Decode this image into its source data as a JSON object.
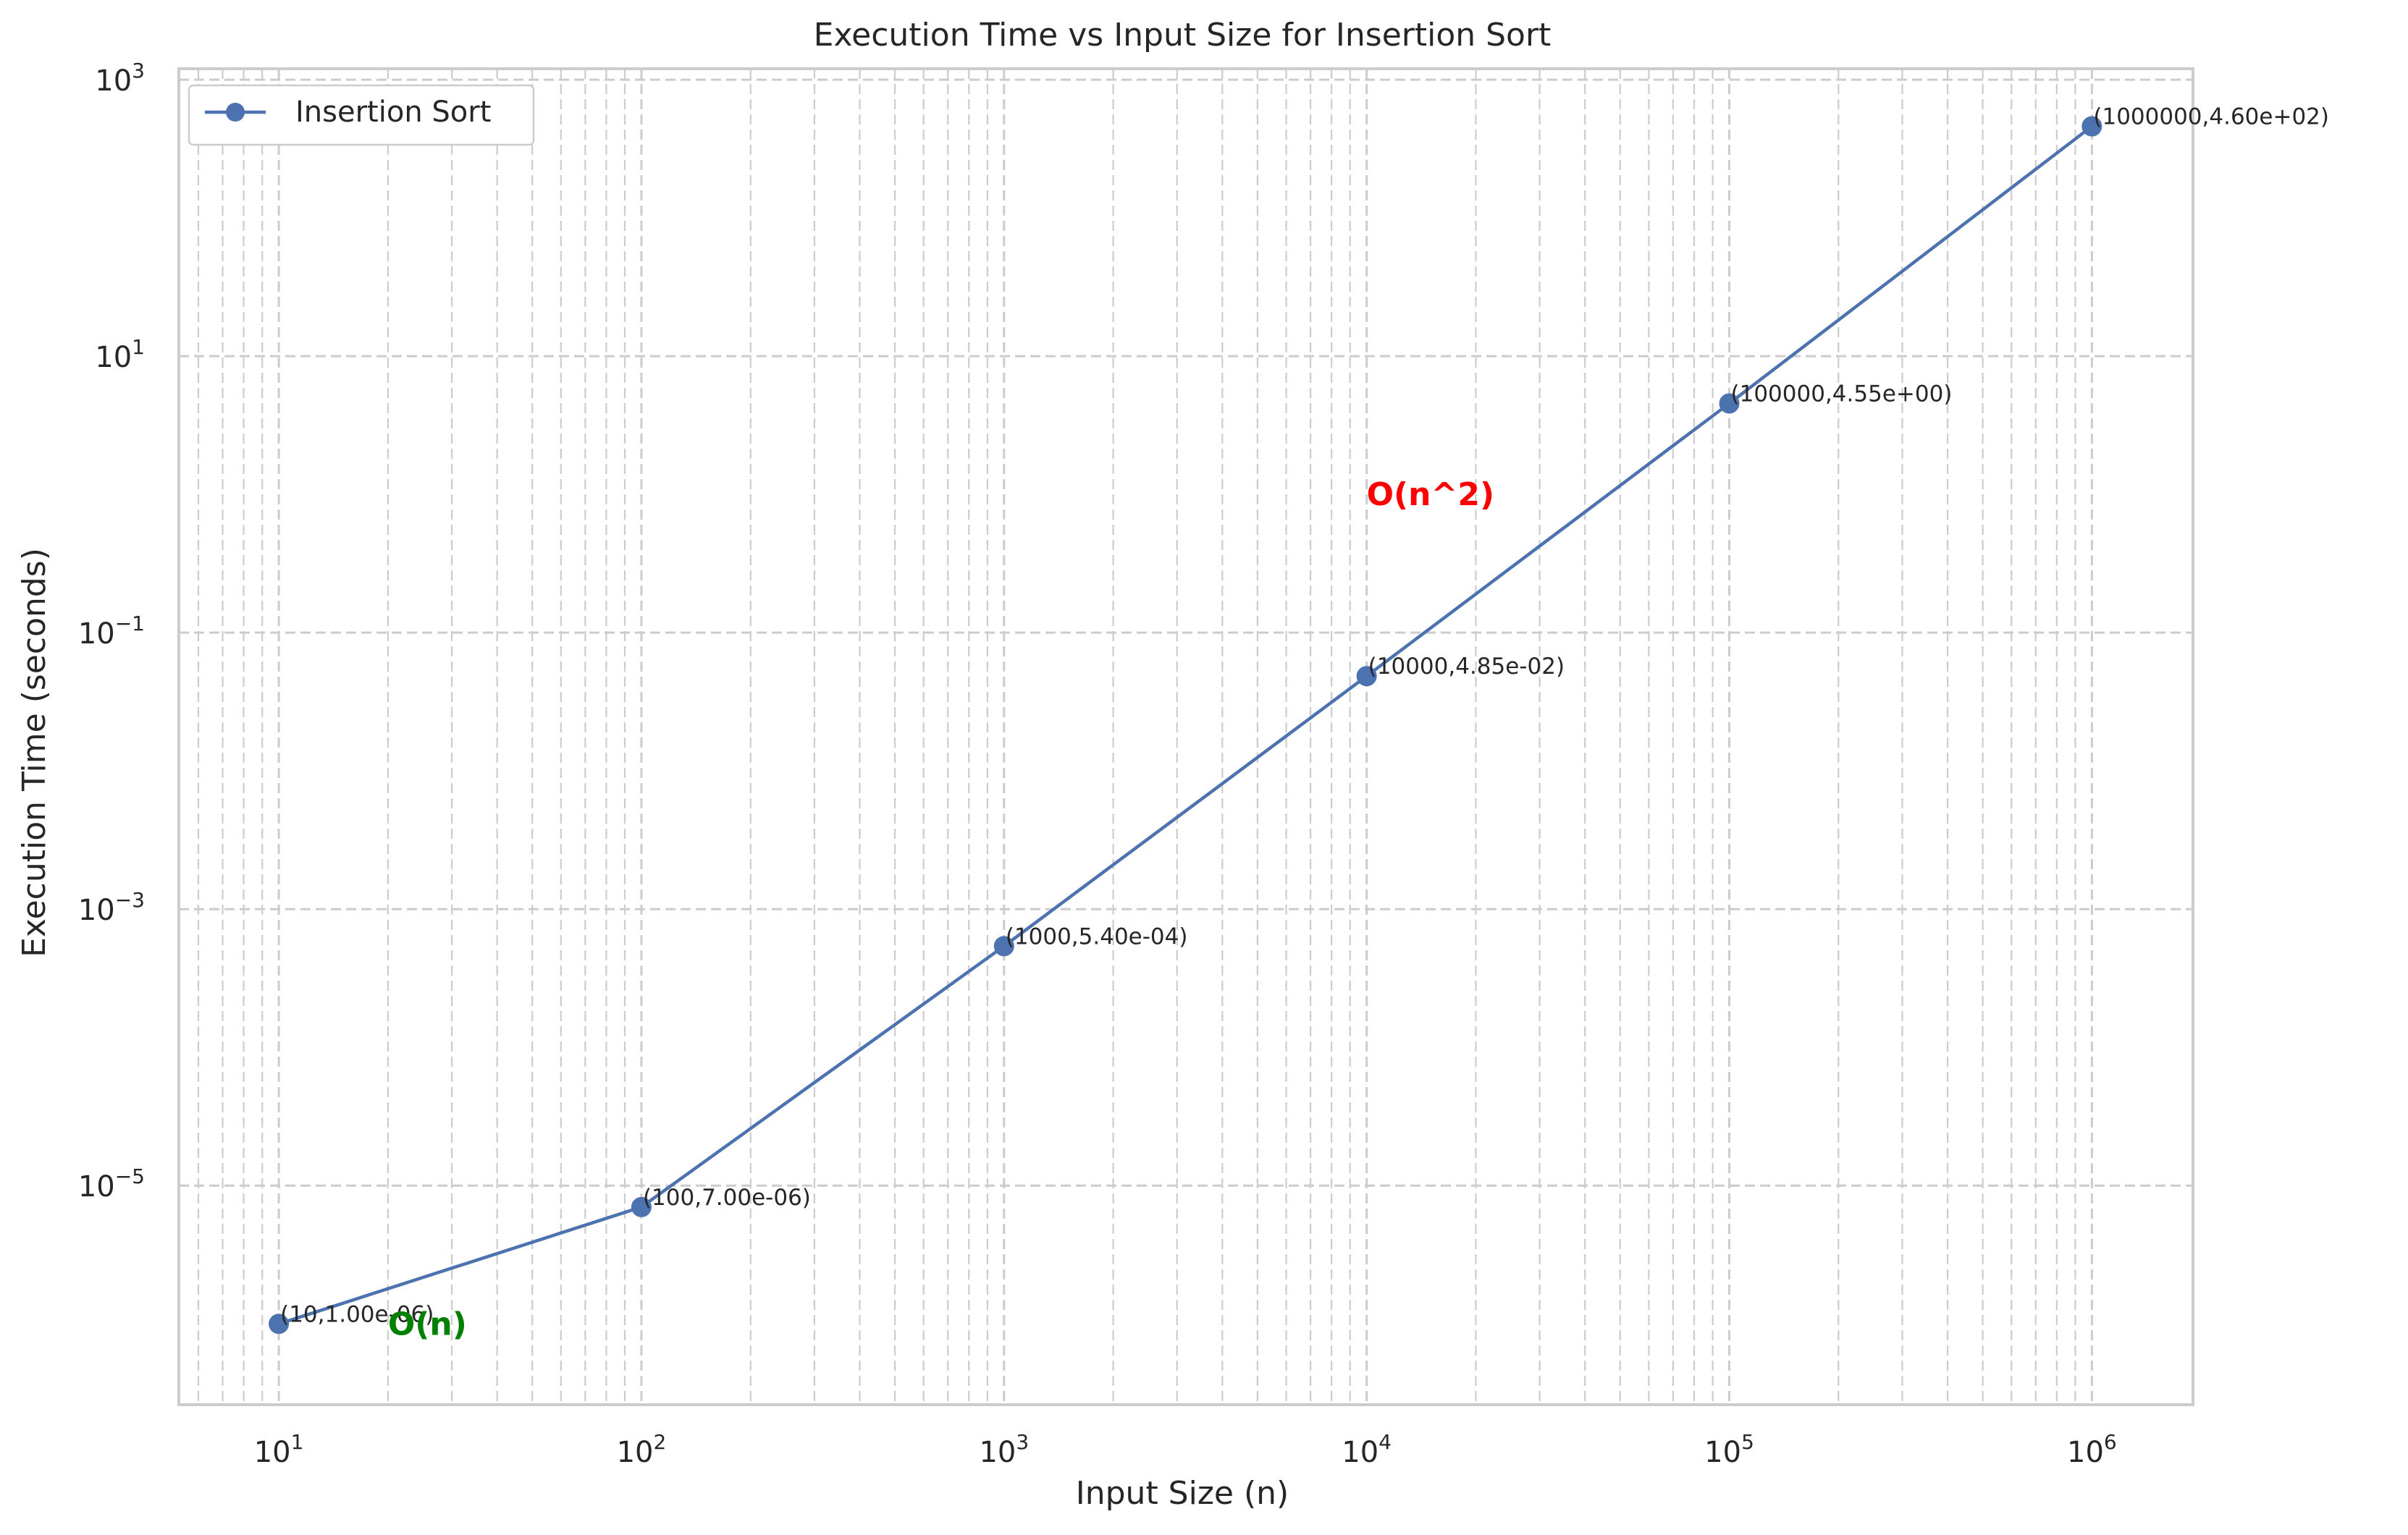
{
  "chart_data": {
    "type": "line",
    "title": "Execution Time vs Input Size for Insertion Sort",
    "xlabel": "Input Size (n)",
    "ylabel": "Execution Time (seconds)",
    "xscale": "log",
    "yscale": "log",
    "xlim": [
      5.3,
      1900000
    ],
    "ylim": [
      2.6e-07,
      1200
    ],
    "grid": "on (major and minor, dashed)",
    "legend_position": "top-left",
    "x_ticks": [
      {
        "value": 10,
        "base": "10",
        "exp": "1"
      },
      {
        "value": 100,
        "base": "10",
        "exp": "2"
      },
      {
        "value": 1000,
        "base": "10",
        "exp": "3"
      },
      {
        "value": 10000,
        "base": "10",
        "exp": "4"
      },
      {
        "value": 100000,
        "base": "10",
        "exp": "5"
      },
      {
        "value": 1000000,
        "base": "10",
        "exp": "6"
      }
    ],
    "y_ticks": [
      {
        "value": 1e-05,
        "base": "10",
        "exp": "−5"
      },
      {
        "value": 0.001,
        "base": "10",
        "exp": "−3"
      },
      {
        "value": 0.1,
        "base": "10",
        "exp": "−1"
      },
      {
        "value": 10,
        "base": "10",
        "exp": "1"
      },
      {
        "value": 1000,
        "base": "10",
        "exp": "3"
      }
    ],
    "series": [
      {
        "name": "Insertion Sort",
        "color": "#4c72b0",
        "marker": "circle",
        "x": [
          10,
          100,
          1000,
          10000,
          100000,
          1000000
        ],
        "y": [
          1e-06,
          7e-06,
          0.00054,
          0.0485,
          4.55,
          460
        ],
        "point_labels": [
          "(10,1.00e-06)",
          "(100,7.00e-06)",
          "(1000,5.40e-04)",
          "(10000,4.85e-02)",
          "(100000,4.55e+00)",
          "(1000000,4.60e+02)"
        ]
      }
    ],
    "annotations": [
      {
        "text": "O(n^2)",
        "x": 10000,
        "y": 1.0,
        "color": "#ff0000"
      },
      {
        "text": "O(n)",
        "x": 20,
        "y": 1e-06,
        "color": "#008000"
      }
    ]
  }
}
